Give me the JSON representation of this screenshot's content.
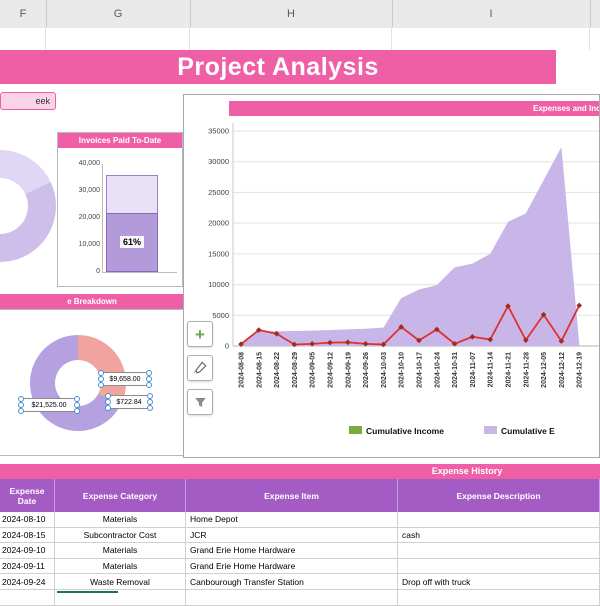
{
  "app": {
    "columns": [
      "F",
      "G",
      "H",
      "I"
    ],
    "title": "Project Analysis"
  },
  "panels": {
    "week_label": "eek",
    "breakdown": {
      "title": "e Breakdown"
    },
    "history": {
      "title": "Expense History",
      "columns": [
        "Expense Date",
        "Expense Category",
        "Expense Item",
        "Expense Description"
      ],
      "rows": [
        [
          "2024-08-10",
          "Materials",
          "Home Depot",
          ""
        ],
        [
          "2024-08-15",
          "Subcontractor Cost",
          "JCR",
          "cash"
        ],
        [
          "2024-09-10",
          "Materials",
          "Grand Erie Home Hardware",
          ""
        ],
        [
          "2024-09-11",
          "Materials",
          "Grand Erie Home Hardware",
          ""
        ],
        [
          "2024-09-24",
          "Waste Removal",
          "Canbourough Transfer Station",
          "Drop off with truck"
        ]
      ]
    }
  },
  "chart_buttons": [
    "plus-icon",
    "brush-icon",
    "filter-icon"
  ],
  "colors": {
    "accent_pink": "#ee5fa5",
    "table_header_purple": "#a55bc4",
    "area_purple": "#c9b6e8",
    "legend_green": "#77ad3c",
    "line_red": "#e03030"
  },
  "chart_data": [
    {
      "name": "expenses-and-income",
      "type": "area",
      "title": "Expenses and Income",
      "x": [
        "2024-08-08",
        "2024-08-15",
        "2024-08-22",
        "2024-08-29",
        "2024-09-05",
        "2024-09-12",
        "2024-09-19",
        "2024-09-26",
        "2024-10-03",
        "2024-10-10",
        "2024-10-17",
        "2024-10-24",
        "2024-10-31",
        "2024-11-07",
        "2024-11-14",
        "2024-11-21",
        "2024-11-28",
        "2024-12-05",
        "2024-12-12",
        "2024-12-19"
      ],
      "series": [
        {
          "name": "Cumulative E (area)",
          "type": "area",
          "color": "#c9b6e8",
          "values": [
            300,
            2400,
            2400,
            2450,
            2500,
            2600,
            2700,
            2800,
            3000,
            7800,
            9200,
            9900,
            12800,
            13400,
            15000,
            20200,
            21600,
            27000,
            32400,
            500
          ]
        },
        {
          "name": "unlabeled red line",
          "type": "line",
          "color": "#e03030",
          "marker_color": "#a02b20",
          "values": [
            300,
            2600,
            2000,
            250,
            350,
            550,
            600,
            350,
            250,
            3100,
            900,
            2700,
            350,
            1500,
            1050,
            6500,
            950,
            5100,
            800,
            6600
          ]
        }
      ],
      "ylim": [
        0,
        35000
      ],
      "yticks": [
        0,
        5000,
        10000,
        15000,
        20000,
        25000,
        30000,
        35000
      ],
      "legend": [
        {
          "label": "Cumulative Income",
          "color": "#77ad3c"
        },
        {
          "label": "Cumulative E",
          "color": "#c9b6e8"
        }
      ],
      "x_labels_rotated": true,
      "grid": true
    },
    {
      "name": "invoices-paid-to-date",
      "type": "bar",
      "title": "Invoices Paid To-Date",
      "ylim": [
        0,
        40000
      ],
      "ticks_top_down": [
        "40,000",
        "30,000",
        "20,000",
        "10,000",
        "0"
      ],
      "total": 36000,
      "paid": 22000,
      "percent_label": "61%"
    },
    {
      "name": "expense-breakdown",
      "type": "pie",
      "donut": true,
      "title": "e Breakdown",
      "labels": [
        "$9,658.00",
        "$722.84",
        "$21,525.00"
      ],
      "values": [
        9658.0,
        722.84,
        21525.0
      ],
      "colors": [
        "#f1a3a0",
        "#f0b27a",
        "#b5a1e0"
      ]
    }
  ]
}
